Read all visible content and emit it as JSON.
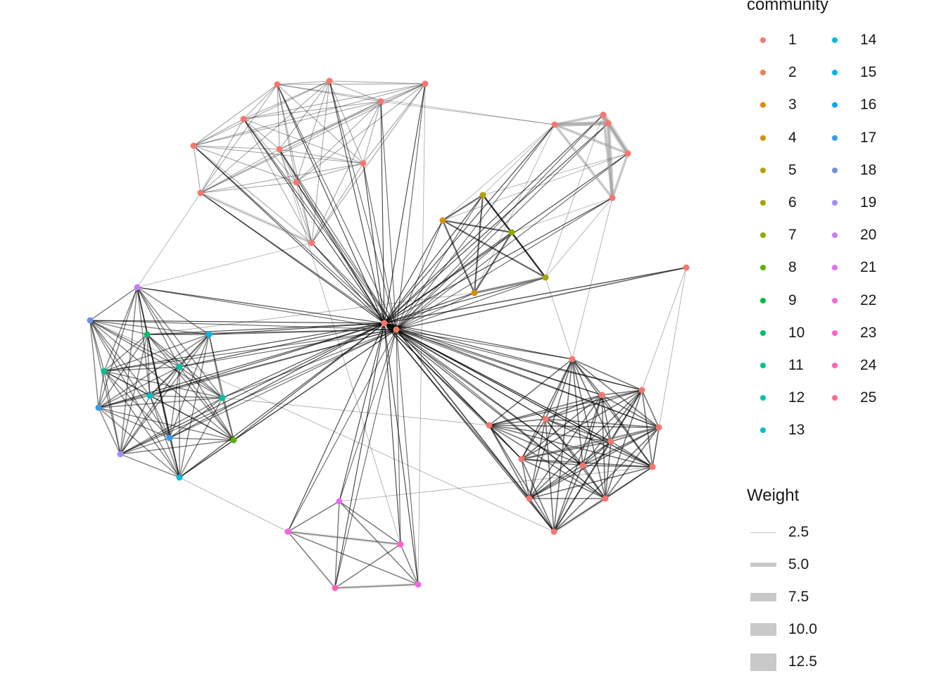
{
  "legend": {
    "community_title": "community",
    "weight_title": "Weight",
    "communities": [
      {
        "label": "1",
        "color": "#F8766D"
      },
      {
        "label": "2",
        "color": "#F17E4F"
      },
      {
        "label": "3",
        "color": "#E58700"
      },
      {
        "label": "4",
        "color": "#D89000"
      },
      {
        "label": "5",
        "color": "#B79F00"
      },
      {
        "label": "6",
        "color": "#A3A500"
      },
      {
        "label": "7",
        "color": "#8BAB00"
      },
      {
        "label": "8",
        "color": "#5BB300"
      },
      {
        "label": "9",
        "color": "#00BA38"
      },
      {
        "label": "10",
        "color": "#00BE67"
      },
      {
        "label": "11",
        "color": "#00C08B"
      },
      {
        "label": "12",
        "color": "#00C1A8"
      },
      {
        "label": "13",
        "color": "#00BFC4"
      },
      {
        "label": "14",
        "color": "#00BBDC"
      },
      {
        "label": "15",
        "color": "#00B4EF"
      },
      {
        "label": "16",
        "color": "#00A9FF"
      },
      {
        "label": "17",
        "color": "#2E9FF5"
      },
      {
        "label": "18",
        "color": "#6C8FE8"
      },
      {
        "label": "19",
        "color": "#A58AFF"
      },
      {
        "label": "20",
        "color": "#C77CFF"
      },
      {
        "label": "21",
        "color": "#E76BF3"
      },
      {
        "label": "22",
        "color": "#F564E3"
      },
      {
        "label": "23",
        "color": "#FD61D1"
      },
      {
        "label": "24",
        "color": "#FF62BC"
      },
      {
        "label": "25",
        "color": "#FF6C91"
      }
    ],
    "weights": [
      {
        "label": "2.5",
        "value": 2.5
      },
      {
        "label": "5.0",
        "value": 5.0
      },
      {
        "label": "7.5",
        "value": 7.5
      },
      {
        "label": "10.0",
        "value": 10.0
      },
      {
        "label": "12.5",
        "value": 12.5
      }
    ]
  }
}
